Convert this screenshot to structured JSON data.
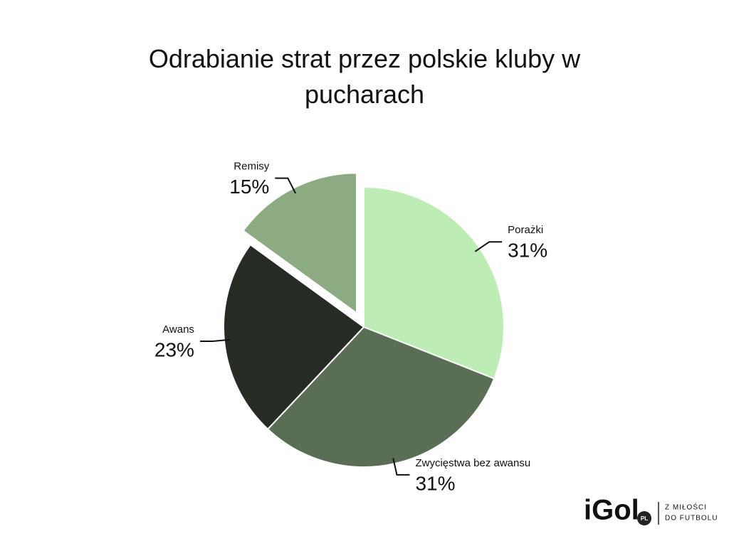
{
  "chart_data": {
    "type": "pie",
    "title": "Odrabianie strat przez polskie kluby w pucharach",
    "categories": [
      "Porażki",
      "Zwycięstwa bez awansu",
      "Awans",
      "Remisy"
    ],
    "values": [
      31,
      31,
      23,
      15
    ],
    "value_labels": [
      "31%",
      "31%",
      "23%",
      "15%"
    ],
    "colors": [
      "#bdedb4",
      "#5a6e55",
      "#262b24",
      "#8dab83"
    ],
    "explode": [
      false,
      false,
      false,
      true
    ]
  },
  "logo": {
    "name": "iGol",
    "badge": "PL",
    "tagline": [
      "Z MIŁOŚCI",
      "DO FUTBOLU"
    ]
  }
}
